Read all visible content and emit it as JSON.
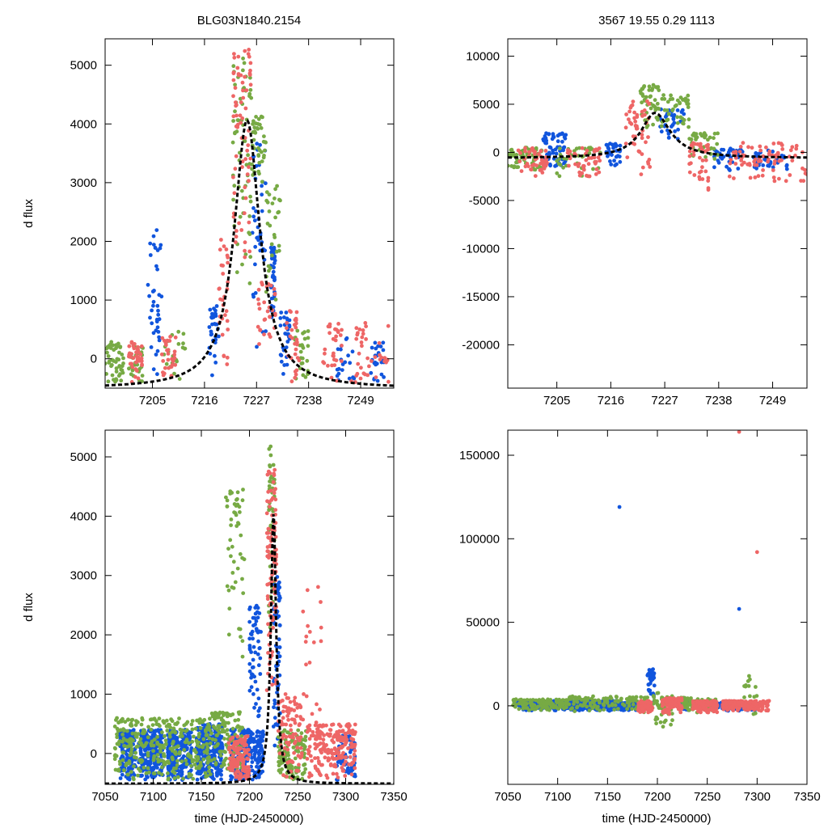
{
  "figure": {
    "left_title": "BLG03N1840.2154",
    "right_title": "3567  19.55  0.29  1113",
    "ylabel": "d flux",
    "xlabel": "time (HJD-2450000)"
  },
  "colors": {
    "blue": "#1155dd",
    "green": "#77aa44",
    "red": "#ee6666",
    "model": "#000000",
    "frame": "#000000"
  },
  "chart_data": [
    {
      "id": "top-left",
      "type": "scatter",
      "title": "BLG03N1840.2154",
      "xlabel": "",
      "ylabel": "d flux",
      "xlim": [
        7195,
        7256
      ],
      "ylim": [
        -500,
        5450
      ],
      "xticks": [
        7205,
        7216,
        7227,
        7238,
        7249
      ],
      "yticks": [
        0,
        1000,
        2000,
        3000,
        4000,
        5000
      ],
      "model": {
        "t0": 7225,
        "amplitude": 4570,
        "baseline": -510,
        "width_rise": 3.3,
        "width_fall": 3.3
      },
      "series": [
        {
          "name": "blue",
          "clusters": [
            [
              7204,
              7207,
              -300,
              2200,
              40,
              0.8
            ],
            [
              7217,
              7219,
              -300,
              900,
              30,
              0.8
            ],
            [
              7226,
              7229,
              0,
              3700,
              40,
              0.6
            ],
            [
              7230,
              7231,
              500,
              1900,
              40,
              0.6
            ],
            [
              7232,
              7234,
              -300,
              800,
              30,
              0.6
            ],
            [
              7244,
              7248,
              -400,
              400,
              20,
              1.0
            ],
            [
              7251,
              7254,
              -400,
              300,
              25,
              1.0
            ]
          ]
        },
        {
          "name": "green",
          "clusters": [
            [
              7195,
              7199,
              -400,
              300,
              50,
              0.8
            ],
            [
              7200,
              7203,
              -400,
              200,
              25,
              0.8
            ],
            [
              7207,
              7212,
              -400,
              500,
              20,
              1.0
            ],
            [
              7222,
              7226,
              1000,
              5200,
              60,
              0.6
            ],
            [
              7226,
              7229,
              3000,
              4200,
              40,
              0.6
            ],
            [
              7229,
              7232,
              800,
              3000,
              30,
              0.6
            ],
            [
              7235,
              7238,
              -400,
              500,
              25,
              0.8
            ]
          ]
        },
        {
          "name": "red",
          "clusters": [
            [
              7200,
              7203,
              -400,
              300,
              40,
              0.8
            ],
            [
              7207,
              7210,
              -400,
              400,
              30,
              0.8
            ],
            [
              7219,
              7221,
              -400,
              2100,
              30,
              0.7
            ],
            [
              7222,
              7226,
              1500,
              5300,
              70,
              0.5
            ],
            [
              7227,
              7231,
              100,
              1300,
              30,
              0.6
            ],
            [
              7233,
              7236,
              -400,
              900,
              30,
              0.7
            ],
            [
              7241,
              7245,
              -400,
              700,
              30,
              1.0
            ],
            [
              7247,
              7255,
              -400,
              700,
              40,
              1.0
            ]
          ]
        }
      ]
    },
    {
      "id": "top-right",
      "type": "scatter",
      "title": "3567  19.55  0.29  1113",
      "xlabel": "",
      "ylabel": "",
      "xlim": [
        7195,
        7256
      ],
      "ylim": [
        -24500,
        11800
      ],
      "xticks": [
        7205,
        7216,
        7227,
        7238,
        7249
      ],
      "yticks": [
        -20000,
        -15000,
        -10000,
        -5000,
        0,
        5000,
        10000
      ],
      "model": {
        "t0": 7225,
        "amplitude": 4700,
        "baseline": -600,
        "width_rise": 3.5,
        "width_fall": 3.8
      },
      "series": [
        {
          "name": "blue",
          "clusters": [
            [
              7202,
              7207,
              -1500,
              2000,
              60,
              0.7
            ],
            [
              7215,
              7218,
              -1500,
              1000,
              30,
              0.7
            ],
            [
              7226,
              7231,
              1000,
              4500,
              35,
              0.6
            ],
            [
              7237,
              7243,
              -2000,
              500,
              40,
              0.7
            ],
            [
              7245,
              7252,
              -2000,
              200,
              40,
              0.9
            ]
          ]
        },
        {
          "name": "green",
          "clusters": [
            [
              7195,
              7202,
              -2000,
              500,
              60,
              0.7
            ],
            [
              7205,
              7214,
              -2500,
              500,
              40,
              0.8
            ],
            [
              7222,
              7226,
              2000,
              7000,
              45,
              0.6
            ],
            [
              7226,
              7232,
              2500,
              6000,
              40,
              0.6
            ],
            [
              7232,
              7238,
              -1000,
              2000,
              35,
              0.7
            ]
          ]
        },
        {
          "name": "red",
          "clusters": [
            [
              7197,
              7203,
              -2500,
              500,
              50,
              0.7
            ],
            [
              7207,
              7214,
              -3000,
              500,
              45,
              0.8
            ],
            [
              7219,
              7224,
              -3000,
              5500,
              50,
              0.6
            ],
            [
              7232,
              7236,
              -4000,
              1000,
              40,
              0.7
            ],
            [
              7240,
              7256,
              -3000,
              1000,
              80,
              0.9
            ]
          ]
        }
      ]
    },
    {
      "id": "bottom-left",
      "type": "scatter",
      "title": "",
      "xlabel": "time (HJD-2450000)",
      "ylabel": "d flux",
      "xlim": [
        7050,
        7350
      ],
      "ylim": [
        -520,
        5450
      ],
      "xticks": [
        7050,
        7100,
        7150,
        7200,
        7250,
        7300,
        7350
      ],
      "yticks": [
        0,
        1000,
        2000,
        3000,
        4000,
        5000
      ],
      "model": {
        "t0": 7225,
        "amplitude": 4570,
        "baseline": -510,
        "width_rise": 3.3,
        "width_fall": 3.3
      },
      "series": [
        {
          "name": "blue",
          "clusters": [
            [
              7065,
              7082,
              -450,
              400,
              150,
              0.8
            ],
            [
              7085,
              7110,
              -450,
              400,
              220,
              0.8
            ],
            [
              7115,
              7140,
              -450,
              400,
              220,
              0.8
            ],
            [
              7145,
              7172,
              -450,
              500,
              260,
              0.8
            ],
            [
              7180,
              7215,
              -450,
              400,
              220,
              0.8
            ],
            [
              7200,
              7212,
              400,
              2500,
              60,
              0.6
            ],
            [
              7225,
              7232,
              -200,
              3000,
              70,
              0.6
            ],
            [
              7290,
              7310,
              -450,
              300,
              60,
              0.8
            ]
          ]
        },
        {
          "name": "green",
          "clusters": [
            [
              7060,
              7110,
              -450,
              600,
              160,
              0.8
            ],
            [
              7110,
              7160,
              -450,
              600,
              160,
              0.8
            ],
            [
              7160,
              7195,
              -300,
              700,
              120,
              0.8
            ],
            [
              7175,
              7195,
              1200,
              4500,
              50,
              0.5
            ],
            [
              7220,
              7226,
              1000,
              5200,
              50,
              0.5
            ],
            [
              7230,
              7260,
              -450,
              400,
              120,
              0.8
            ]
          ]
        },
        {
          "name": "red",
          "clusters": [
            [
              7178,
              7200,
              -450,
              300,
              120,
              0.8
            ],
            [
              7218,
              7228,
              500,
              4800,
              100,
              0.5
            ],
            [
              7230,
              7255,
              -450,
              1000,
              90,
              0.8
            ],
            [
              7260,
              7310,
              -450,
              500,
              200,
              0.8
            ],
            [
              7255,
              7275,
              500,
              3000,
              20,
              0.8
            ]
          ]
        }
      ]
    },
    {
      "id": "bottom-right",
      "type": "scatter",
      "title": "",
      "xlabel": "time (HJD-2450000)",
      "ylabel": "",
      "xlim": [
        7050,
        7350
      ],
      "ylim": [
        -47000,
        165000
      ],
      "xticks": [
        7050,
        7100,
        7150,
        7200,
        7250,
        7300,
        7350
      ],
      "yticks": [
        0,
        50000,
        100000,
        150000
      ],
      "model": null,
      "series": [
        {
          "name": "blue",
          "clusters": [
            [
              7060,
              7110,
              -3000,
              3000,
              200,
              0.6
            ],
            [
              7110,
              7160,
              -3000,
              3000,
              200,
              0.6
            ],
            [
              7160,
              7188,
              -3000,
              2000,
              120,
              0.6
            ],
            [
              7190,
              7197,
              0,
              22000,
              40,
              0.5
            ],
            [
              7225,
              7232,
              -3000,
              4000,
              40,
              0.6
            ],
            [
              7255,
              7300,
              -3000,
              2000,
              100,
              0.7
            ]
          ]
        },
        {
          "name": "green",
          "clusters": [
            [
              7055,
              7110,
              -3000,
              4000,
              120,
              0.7
            ],
            [
              7110,
              7190,
              -4000,
              6000,
              120,
              0.7
            ],
            [
              7195,
              7215,
              -15000,
              8000,
              50,
              0.7
            ],
            [
              7220,
              7260,
              -5000,
              5000,
              80,
              0.7
            ],
            [
              7285,
              7300,
              -5000,
              18000,
              20,
              0.8
            ]
          ]
        },
        {
          "name": "red",
          "clusters": [
            [
              7180,
              7195,
              -4000,
              3000,
              80,
              0.7
            ],
            [
              7205,
              7225,
              -5000,
              5000,
              80,
              0.7
            ],
            [
              7235,
              7260,
              -4000,
              3000,
              110,
              0.7
            ],
            [
              7265,
              7312,
              -3000,
              3000,
              170,
              0.7
            ]
          ]
        }
      ],
      "outliers": [
        {
          "series": "blue",
          "x": 7162,
          "y": 119000
        },
        {
          "series": "blue",
          "x": 7282,
          "y": 58000
        },
        {
          "series": "red",
          "x": 7282,
          "y": 164000
        },
        {
          "series": "red",
          "x": 7300,
          "y": 92000
        }
      ]
    }
  ]
}
